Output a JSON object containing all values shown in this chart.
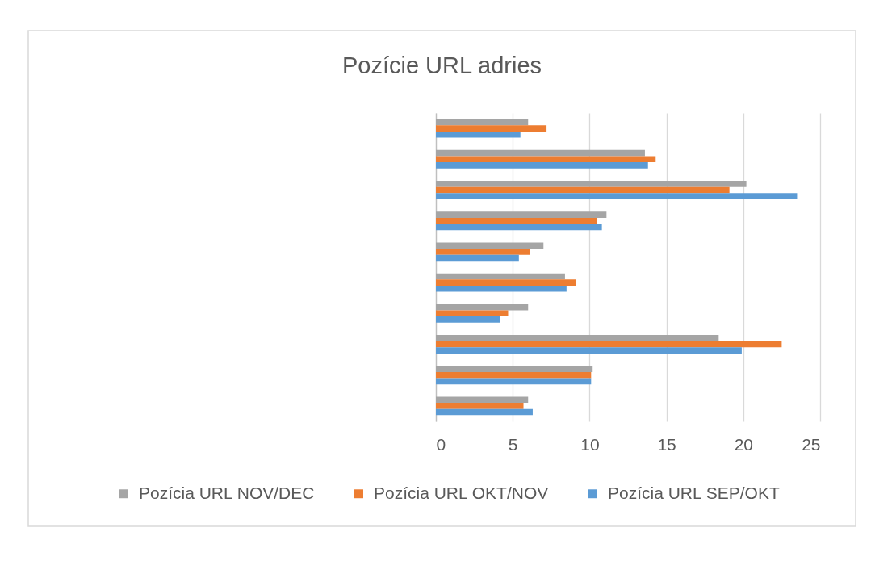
{
  "chart_data": {
    "type": "bar",
    "orientation": "horizontal",
    "title": "Pozície URL adries",
    "categories": [
      null,
      null,
      null,
      null,
      null,
      null,
      null,
      null,
      null,
      null
    ],
    "series": [
      {
        "name": "Pozícia URL NOV/DEC",
        "color": "#a5a5a5",
        "values": [
          6.0,
          13.6,
          20.2,
          11.1,
          7.0,
          8.4,
          6.0,
          18.4,
          10.2,
          6.0
        ]
      },
      {
        "name": "Pozícia URL OKT/NOV",
        "color": "#ed7d31",
        "values": [
          7.2,
          14.3,
          19.1,
          10.5,
          6.1,
          9.1,
          4.7,
          22.5,
          10.1,
          5.7
        ]
      },
      {
        "name": "Pozícia URL SEP/OKT",
        "color": "#5b9bd5",
        "values": [
          5.5,
          13.8,
          23.5,
          10.8,
          5.4,
          8.5,
          4.2,
          19.9,
          10.1,
          6.3
        ]
      }
    ],
    "xlim": [
      0,
      25
    ],
    "xticks": [
      0,
      5,
      10,
      15,
      20,
      25
    ],
    "grid": "x",
    "legend": "bottom"
  }
}
